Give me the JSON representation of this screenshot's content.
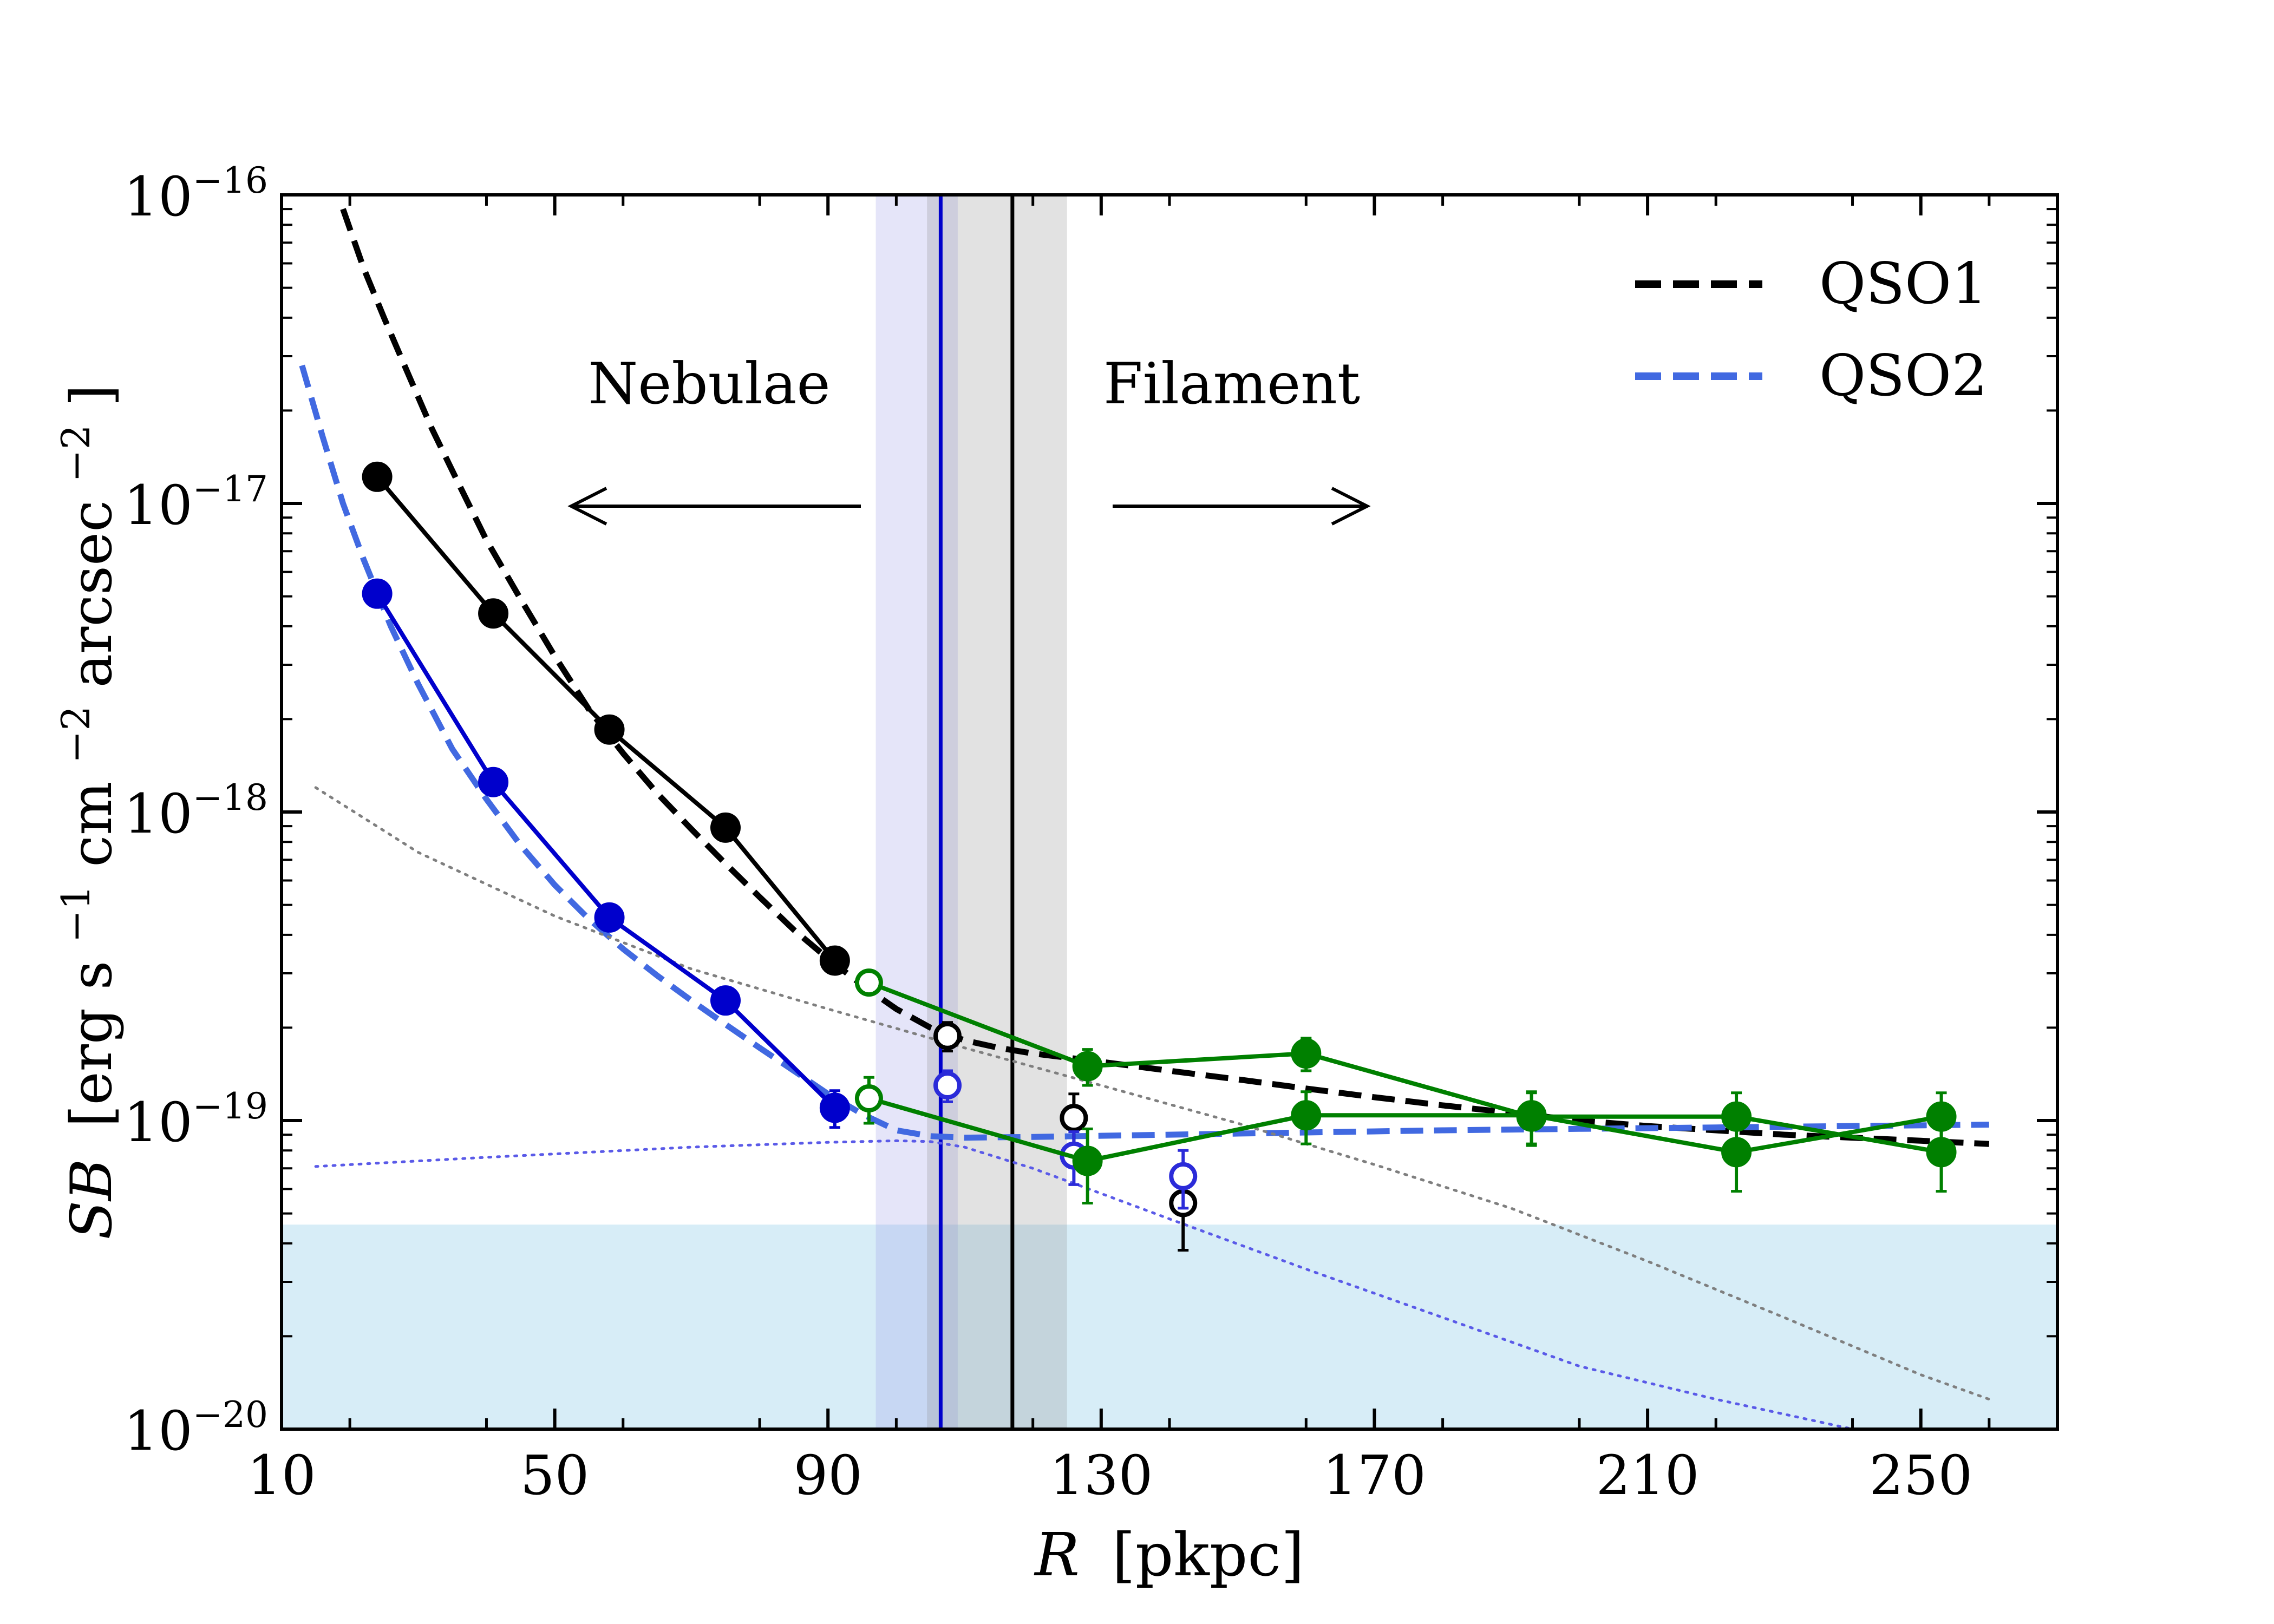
{
  "chart_data": {
    "type": "line",
    "xlabel_main": "R",
    "xlabel_unit": "[pkpc]",
    "ylabel_main": "SB",
    "ylabel_unit_parts": [
      "[erg s",
      "−1",
      " cm",
      "−2",
      " arcsec",
      "−2",
      "]"
    ],
    "xlim": [
      10,
      270
    ],
    "ylim": [
      1e-20,
      1e-16
    ],
    "xticks": [
      10,
      50,
      90,
      130,
      170,
      210,
      250
    ],
    "yticks": [
      {
        "base": "10",
        "exp": "−16",
        "value": 1e-16
      },
      {
        "base": "10",
        "exp": "−17",
        "value": 1e-17
      },
      {
        "base": "10",
        "exp": "−18",
        "value": 1e-18
      },
      {
        "base": "10",
        "exp": "−19",
        "value": 1e-19
      },
      {
        "base": "10",
        "exp": "−20",
        "value": 1e-20
      }
    ],
    "legend": [
      {
        "label": "QSO1",
        "color": "#000000",
        "style": "dashed"
      },
      {
        "label": "QSO2",
        "color": "#4169e1",
        "style": "dashed"
      }
    ],
    "annotations": {
      "nebulae": "Nebulae",
      "filament": "Filament"
    },
    "noise_band": {
      "ymin": 1e-20,
      "ymax": 4.6e-20,
      "color": "#a6d8ee"
    },
    "bands": [
      {
        "name": "qso2-transition",
        "xmin": 97,
        "xmax": 109,
        "color": "#9999e6",
        "line_x": 106.5,
        "line_color": "#0000cc"
      },
      {
        "name": "qso1-transition",
        "xmin": 104.5,
        "xmax": 125,
        "color": "#8c8c8c",
        "line_x": 117,
        "line_color": "#000000"
      }
    ],
    "series": [
      {
        "name": "QSO1 fit",
        "color": "#000000",
        "style": "dashed",
        "x": [
          19,
          22,
          25,
          28,
          32,
          36,
          40,
          45,
          50,
          55,
          60,
          65,
          70,
          75,
          80,
          85,
          90,
          95,
          100,
          105,
          110,
          115,
          120,
          130,
          140,
          150,
          160,
          170,
          180,
          190,
          200,
          210,
          220,
          230,
          240,
          250,
          260
        ],
        "y": [
          9e-17,
          5.8e-17,
          4e-17,
          2.8e-17,
          1.75e-17,
          1.15e-17,
          7.6e-18,
          4.9e-18,
          3.2e-18,
          2.15e-18,
          1.55e-18,
          1.15e-18,
          8.8e-19,
          6.8e-19,
          5.3e-19,
          4.15e-19,
          3.35e-19,
          2.75e-19,
          2.3e-19,
          2e-19,
          1.82e-19,
          1.72e-19,
          1.65e-19,
          1.55e-19,
          1.45e-19,
          1.36e-19,
          1.27e-19,
          1.19e-19,
          1.12e-19,
          1.06e-19,
          1e-19,
          9.6e-20,
          9.3e-20,
          9e-20,
          8.8e-20,
          8.6e-20,
          8.4e-20
        ]
      },
      {
        "name": "QSO2 fit",
        "color": "#4169e1",
        "style": "dashed",
        "x": [
          13,
          16,
          19,
          22,
          26,
          30,
          35,
          40,
          45,
          50,
          55,
          60,
          65,
          70,
          75,
          80,
          85,
          90,
          95,
          100,
          105,
          110,
          120,
          140,
          160,
          180,
          200,
          220,
          240,
          260
        ],
        "y": [
          2.8e-17,
          1.65e-17,
          1e-17,
          6.6e-18,
          4e-18,
          2.6e-18,
          1.6e-18,
          1.1e-18,
          7.8e-19,
          5.8e-19,
          4.5e-19,
          3.6e-19,
          2.95e-19,
          2.45e-19,
          2.05e-19,
          1.72e-19,
          1.45e-19,
          1.22e-19,
          1.05e-19,
          9.3e-20,
          8.9e-20,
          8.8e-20,
          8.85e-20,
          9e-20,
          9.15e-20,
          9.3e-20,
          9.4e-20,
          9.5e-20,
          9.6e-20,
          9.7e-20
        ]
      },
      {
        "name": "dotted grey",
        "color": "#7f7f7f",
        "style": "dotted",
        "x": [
          15,
          30,
          50,
          70,
          90,
          110,
          130,
          150,
          170,
          190,
          210,
          230,
          250,
          260
        ],
        "y": [
          1.2e-18,
          7.4e-19,
          4.6e-19,
          3.1e-19,
          2.3e-19,
          1.72e-19,
          1.3e-19,
          9.8e-20,
          7.2e-20,
          5.2e-20,
          3.5e-20,
          2.3e-20,
          1.5e-20,
          1.25e-20
        ]
      },
      {
        "name": "dotted blue",
        "color": "#5a5ae8",
        "style": "dotted",
        "x": [
          15,
          40,
          70,
          90,
          100,
          105,
          110,
          120,
          130,
          140,
          160,
          180,
          200,
          220,
          240
        ],
        "y": [
          7.1e-20,
          7.6e-20,
          8.2e-20,
          8.5e-20,
          8.6e-20,
          8.55e-20,
          8.2e-20,
          7e-20,
          5.8e-20,
          4.8e-20,
          3.3e-20,
          2.3e-20,
          1.6e-20,
          1.25e-20,
          1e-20
        ]
      },
      {
        "name": "QSO1 data",
        "color": "#000000",
        "style": "solid",
        "marker": "filled",
        "x": [
          24,
          41,
          58,
          75,
          91
        ],
        "y": [
          1.22e-17,
          4.4e-18,
          1.85e-18,
          8.9e-19,
          3.3e-19
        ],
        "yerr": [
          0,
          0,
          0,
          0,
          0
        ]
      },
      {
        "name": "QSO2 data",
        "color": "#0000cc",
        "style": "solid",
        "marker": "filled",
        "x": [
          24,
          41,
          58,
          75,
          91
        ],
        "y": [
          5.1e-18,
          1.25e-18,
          4.55e-19,
          2.45e-19,
          1.1e-19
        ],
        "yerr": [
          0,
          0,
          0,
          0,
          1.5e-20
        ]
      },
      {
        "name": "QSO1 open points",
        "color": "#000000",
        "style": "none",
        "marker": "open",
        "x": [
          107.5,
          126,
          142
        ],
        "y": [
          1.88e-19,
          1.02e-19,
          5.4e-20
        ],
        "yerr": [
          2e-20,
          2e-20,
          1.6e-20
        ]
      },
      {
        "name": "QSO2 open points",
        "color": "#2b2bd9",
        "style": "none",
        "marker": "open",
        "x": [
          107.5,
          126,
          142
        ],
        "y": [
          1.3e-19,
          7.7e-20,
          6.6e-20
        ],
        "yerr": [
          1.5e-20,
          1.5e-20,
          1.4e-20
        ]
      },
      {
        "name": "QSO1 filament",
        "color": "#008000",
        "style": "solid",
        "marker": "filled",
        "x": [
          96,
          128,
          160,
          193,
          223,
          253
        ],
        "y": [
          2.8e-19,
          1.5e-19,
          1.65e-19,
          1.03e-19,
          1.03e-19,
          7.9e-20
        ],
        "yerr": [
          0,
          2e-20,
          2e-20,
          2e-20,
          2e-20,
          2e-20
        ],
        "open_first": true
      },
      {
        "name": "QSO2 filament",
        "color": "#008000",
        "style": "solid",
        "marker": "filled",
        "x": [
          96,
          128,
          160,
          193,
          223,
          253
        ],
        "y": [
          1.18e-19,
          7.4e-20,
          1.04e-19,
          1.04e-19,
          7.9e-20,
          1.03e-19
        ],
        "yerr": [
          2e-20,
          2e-20,
          2e-20,
          2e-20,
          2e-20,
          2e-20
        ],
        "open_first": true
      }
    ]
  }
}
